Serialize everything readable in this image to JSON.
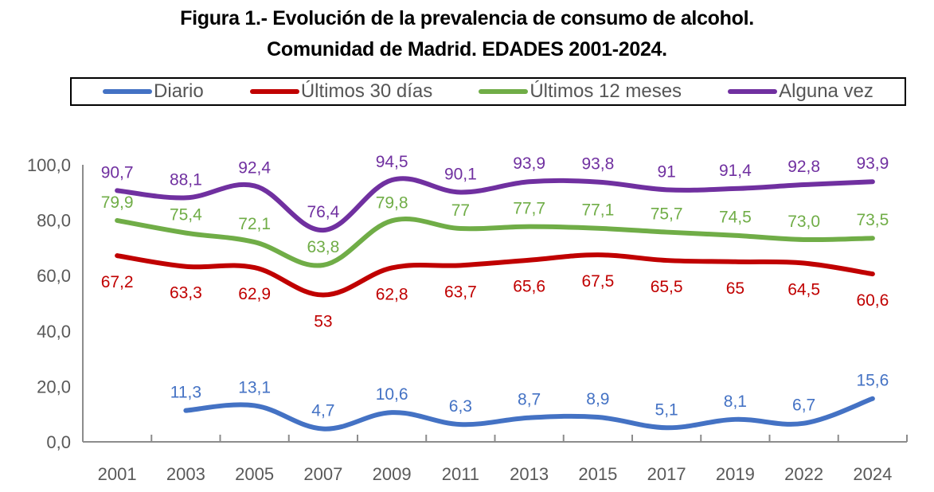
{
  "chart_data": {
    "type": "line",
    "title": "Figura 1.- Evolución de la prevalencia de consumo de alcohol.",
    "subtitle": "Comunidad de Madrid. EDADES 2001-2024.",
    "xlabel": "",
    "ylabel": "",
    "ylim": [
      0,
      100
    ],
    "yticks": [
      "0,0",
      "20,0",
      "40,0",
      "60,0",
      "80,0",
      "100,0"
    ],
    "ytick_values": [
      0,
      20,
      40,
      60,
      80,
      100
    ],
    "categories": [
      "2001",
      "2003",
      "2005",
      "2007",
      "2009",
      "2011",
      "2013",
      "2015",
      "2017",
      "2019",
      "2022",
      "2024"
    ],
    "grid": false,
    "smooth": true,
    "legend_position": "top",
    "series": [
      {
        "name": "Diario",
        "color": "#4472C4",
        "values": [
          null,
          11.3,
          13.1,
          4.7,
          10.6,
          6.3,
          8.7,
          8.9,
          5.1,
          8.1,
          6.7,
          15.6
        ],
        "labels": [
          null,
          "11,3",
          "13,1",
          "4,7",
          "10,6",
          "6,3",
          "8,7",
          "8,9",
          "5,1",
          "8,1",
          "6,7",
          "15,6"
        ],
        "label_position": "above"
      },
      {
        "name": "Últimos 30 días",
        "color": "#C00000",
        "values": [
          67.2,
          63.3,
          62.9,
          53,
          62.8,
          63.7,
          65.6,
          67.5,
          65.5,
          65,
          64.5,
          60.6
        ],
        "labels": [
          "67,2",
          "63,3",
          "62,9",
          "53",
          "62,8",
          "63,7",
          "65,6",
          "67,5",
          "65,5",
          "65",
          "64,5",
          "60,6"
        ],
        "label_position": "below"
      },
      {
        "name": "Últimos 12 meses",
        "color": "#70AD47",
        "values": [
          79.9,
          75.4,
          72.1,
          63.8,
          79.8,
          77,
          77.7,
          77.1,
          75.7,
          74.5,
          73.0,
          73.5
        ],
        "labels": [
          "79,9",
          "75,4",
          "72,1",
          "63,8",
          "79,8",
          "77",
          "77,7",
          "77,1",
          "75,7",
          "74,5",
          "73,0",
          "73,5"
        ],
        "label_position": "above"
      },
      {
        "name": "Alguna vez",
        "color": "#7030A0",
        "values": [
          90.7,
          88.1,
          92.4,
          76.4,
          94.5,
          90.1,
          93.9,
          93.8,
          91,
          91.4,
          92.8,
          93.9
        ],
        "labels": [
          "90,7",
          "88,1",
          "92,4",
          "76,4",
          "94,5",
          "90,1",
          "93,9",
          "93,8",
          "91",
          "91,4",
          "92,8",
          "93,9"
        ],
        "label_position": "above"
      }
    ]
  }
}
